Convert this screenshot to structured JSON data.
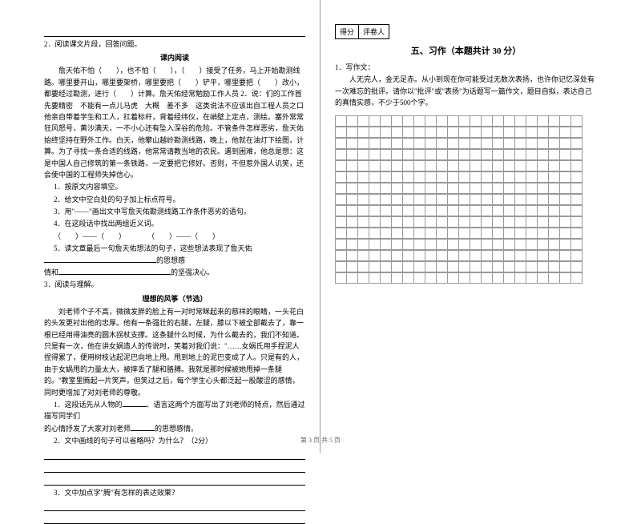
{
  "left": {
    "q2_intro": "2．阅读课文片段，回答问题。",
    "inner_title": "课内阅读",
    "p1": "詹天佑不怕（　　），也不怕（　　），（　　）接受了任务，马上开始勘测线路。哪里要开山，哪里要架桥，哪里要把（　　）铲平，哪里要把（　　）改小，都要经过勘测，进行（　　）计算。詹天佑经常勉励工作人员 2．说：们的工作首先要精密　不能有一点儿马虎　大概　差不多　这类说法不应该出自工程人员之口　他亲自带着学生和工人，扛着标杆，背着经纬仪，在峭壁上定点，测绘。塞外常常狂风怒号，黄沙满天，一不小心还有坠入深谷的危险。不管条件怎样恶劣，詹天佑始终坚持在野外工作。白天，他攀山越岭勘测线路，晚上，他就在油灯下绘图，计算。为了寻找一条合适的线路，他常常请教当地的农民。遇到困难，他总是想：这是中国人自己修筑的第一条铁路，一定要把它修好。否则，不但惹外国人讥笑，还会使中国的工程师失掉信心。",
    "sub1": "1．按原文内容填空。",
    "sub2": "2．给文中空白处的句子加上标点符号。",
    "sub3": "3．用\"——\"画出文中写詹天佑勘测线路工作条件恶劣的语句。",
    "sub4": "4．在这段话中找出两组近义词。",
    "sub4_blanks": "（　　）——（　　）　　　　（　　）——（　　）",
    "sub5": "5．读文章最后一句詹天佑想法的句子，这些想法表现了詹天佑",
    "sub5_tail": "的思想感",
    "sub5_line2": "情和",
    "sub5_tail2": "的坚强决心。",
    "q3": "3．阅读与理解。",
    "story_title": "理想的风筝（节选）",
    "story_p1": "刘老师个子不高，微微发胖的脸上有一对时常眯起来的慈祥的眼睛，一头花白的头发更衬出他的忠厚。他有一条强壮的右腿，左腿，膝以下被全部截去了，靠一根已经用得油亮的圆木拐杖支撑。这条腿什么时候，为什么截去的，我们不知道。只是有一次，他在讲女娲造人的传说时，笑着对我们说：\"……女娲氏用手捏泥人捏得累了，便用树枝沾起泥巴向地上甩。甩到地上的泥巴变成了人。只是有的人，由于女娲甩的力量太大，被摔丢了腿和胳膊。我就是那时候被她甩掉一条腿的。\"教室里腾起一片笑声，但笑过之后，每个学生心头都泛起一股酸涩的感情，同时更增加了对刘老师的尊敬。",
    "story_q1_a": "1．这段话先从人物的",
    "story_q1_b": "、语言这两个方面写出了刘老师的特点，然后通过描写同学们",
    "story_q1_c": "的心情抒发了大家对刘老师",
    "story_q1_d": "的思想感情。",
    "story_q2": "2．文中画线的句子可以省略吗？为什么？（2分）",
    "story_q3": "3．文中加点字\"腾\"有怎样的表达效果？"
  },
  "right": {
    "score_label1": "得分",
    "score_label2": "评卷人",
    "section_title": "五、习作（本题共计 30 分）",
    "q1": "1．写作文：",
    "prompt": "人无完人，金无足赤。从小到现在你可能受过无数次表扬，也许你记忆深处有一次难忘的批评。请你以\"批评\"或\"表扬\"为话题写一篇作文，题目自拟，表达自己的真情实感，不少于500个字。"
  },
  "footer": "第 3 页 共 5 页",
  "grid": {
    "rows": 15,
    "cols": 22
  },
  "colors": {
    "text": "#000000",
    "background": "#ffffff",
    "grid_line": "#999999",
    "footer": "#666666"
  }
}
